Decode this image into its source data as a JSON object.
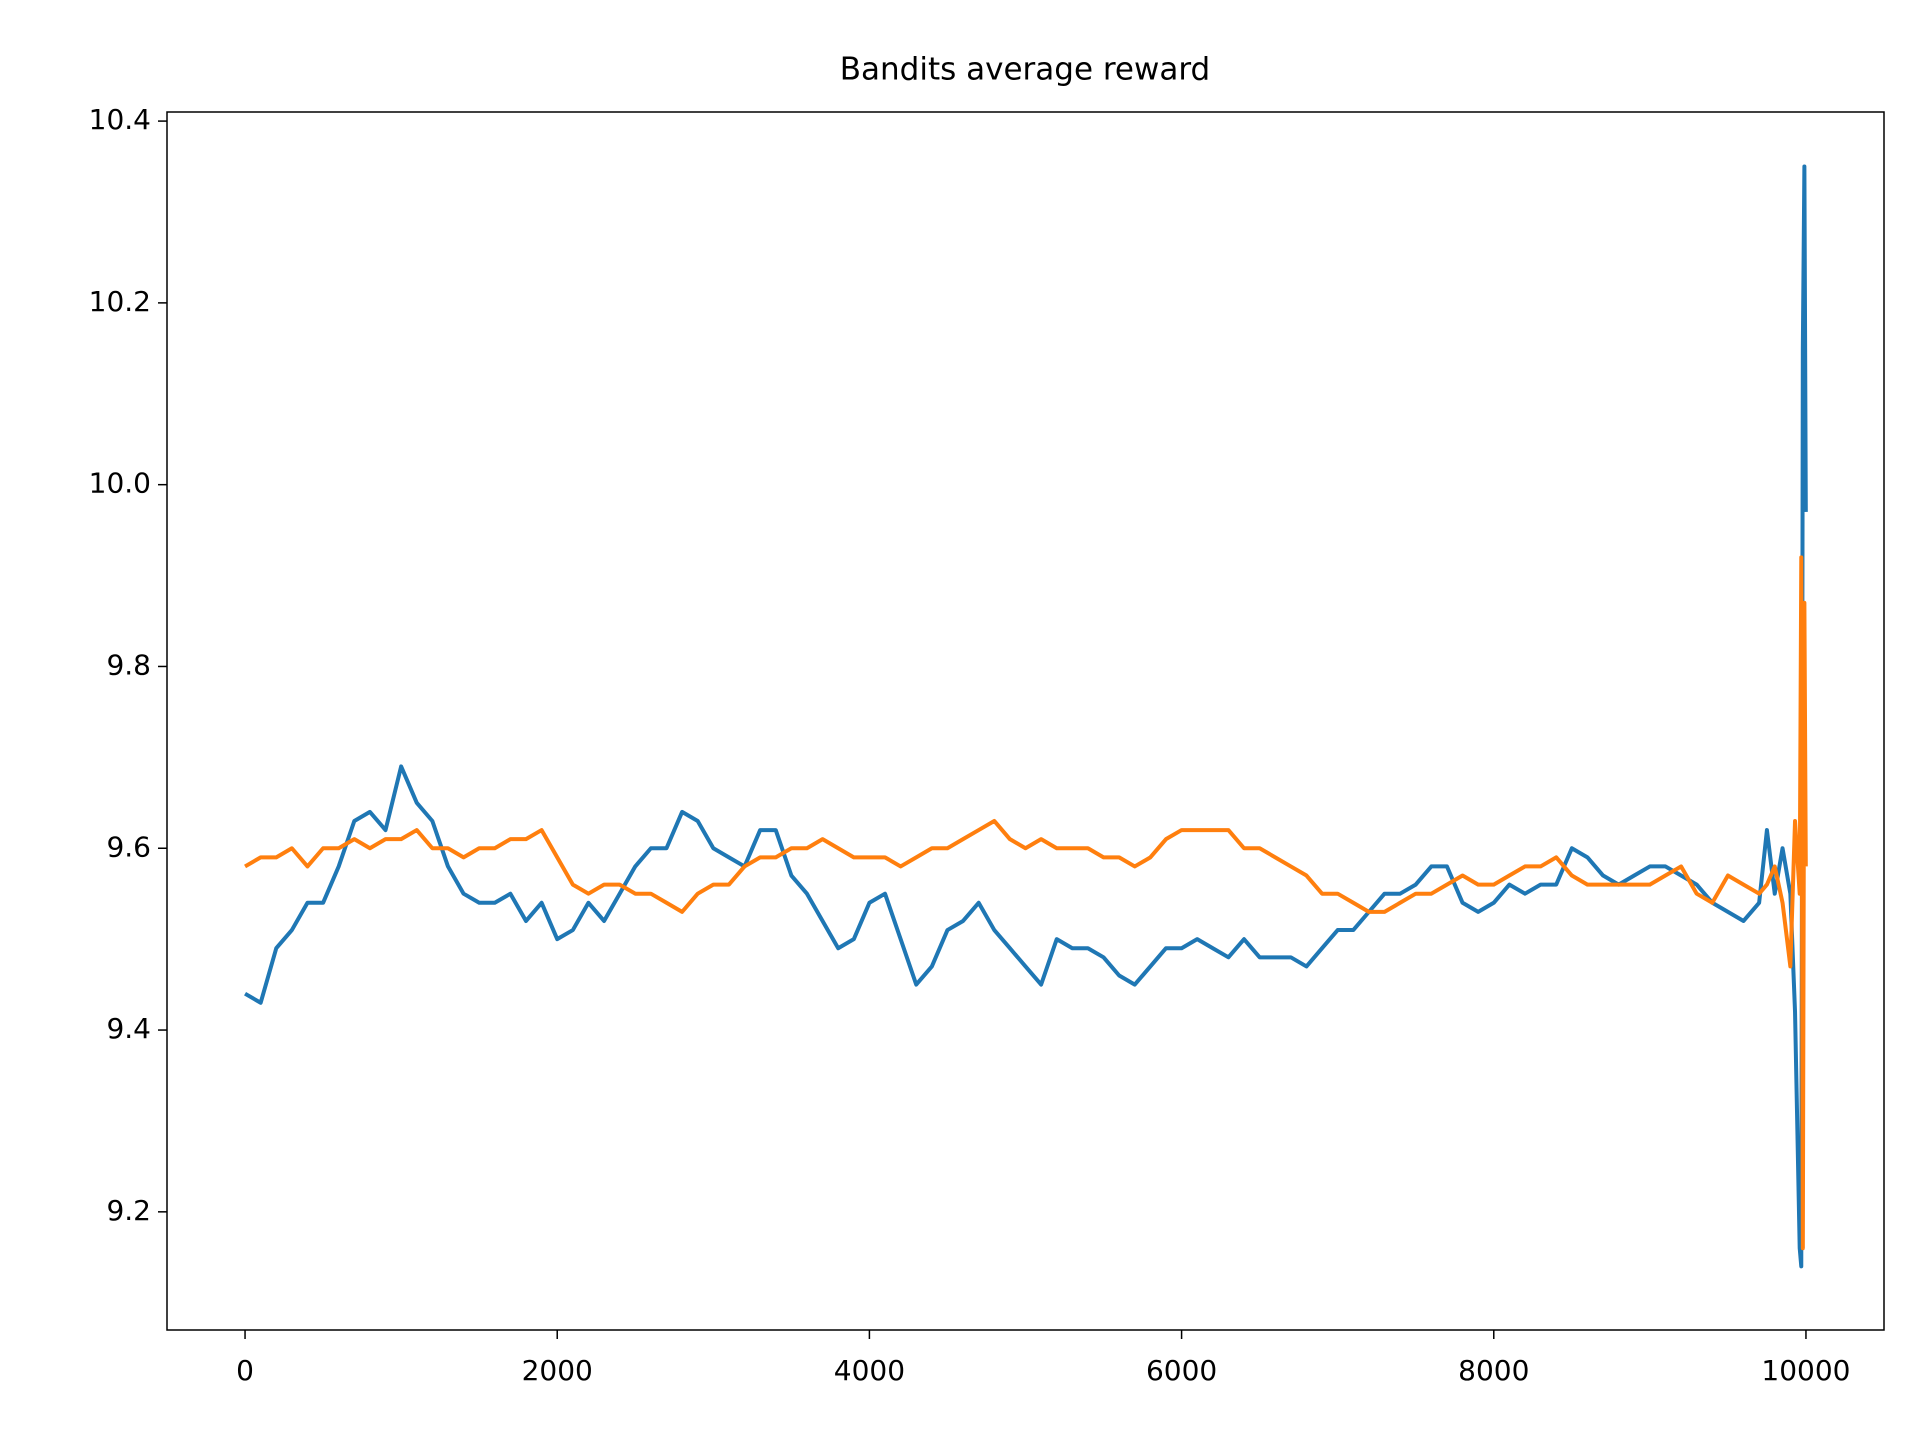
{
  "chart_data": {
    "type": "line",
    "title": "Bandits average reward",
    "x": [
      0,
      100,
      200,
      300,
      400,
      500,
      600,
      700,
      800,
      900,
      1000,
      1100,
      1200,
      1300,
      1400,
      1500,
      1600,
      1700,
      1800,
      1900,
      2000,
      2100,
      2200,
      2300,
      2400,
      2500,
      2600,
      2700,
      2800,
      2900,
      3000,
      3100,
      3200,
      3300,
      3400,
      3500,
      3600,
      3700,
      3800,
      3900,
      4000,
      4100,
      4200,
      4300,
      4400,
      4500,
      4600,
      4700,
      4800,
      4900,
      5000,
      5100,
      5200,
      5300,
      5400,
      5500,
      5600,
      5700,
      5800,
      5900,
      6000,
      6100,
      6200,
      6300,
      6400,
      6500,
      6600,
      6700,
      6800,
      6900,
      7000,
      7100,
      7200,
      7300,
      7400,
      7500,
      7600,
      7700,
      7800,
      7900,
      8000,
      8100,
      8200,
      8300,
      8400,
      8500,
      8600,
      8700,
      8800,
      8900,
      9000,
      9100,
      9200,
      9300,
      9400,
      9500,
      9600,
      9700,
      9750,
      9800,
      9850,
      9900,
      9930,
      9960,
      9970,
      9980,
      9990,
      9999
    ],
    "series": [
      {
        "color": "#1f77b4",
        "values": [
          9.44,
          9.43,
          9.49,
          9.51,
          9.54,
          9.54,
          9.58,
          9.63,
          9.64,
          9.62,
          9.69,
          9.65,
          9.63,
          9.58,
          9.55,
          9.54,
          9.54,
          9.55,
          9.52,
          9.54,
          9.5,
          9.51,
          9.54,
          9.52,
          9.55,
          9.58,
          9.6,
          9.6,
          9.64,
          9.63,
          9.6,
          9.59,
          9.58,
          9.62,
          9.62,
          9.57,
          9.55,
          9.52,
          9.49,
          9.5,
          9.54,
          9.55,
          9.5,
          9.45,
          9.47,
          9.51,
          9.52,
          9.54,
          9.51,
          9.49,
          9.47,
          9.45,
          9.5,
          9.49,
          9.49,
          9.48,
          9.46,
          9.45,
          9.47,
          9.49,
          9.49,
          9.5,
          9.49,
          9.48,
          9.5,
          9.48,
          9.48,
          9.48,
          9.47,
          9.49,
          9.51,
          9.51,
          9.53,
          9.55,
          9.55,
          9.56,
          9.58,
          9.58,
          9.54,
          9.53,
          9.54,
          9.56,
          9.55,
          9.56,
          9.56,
          9.6,
          9.59,
          9.57,
          9.56,
          9.57,
          9.58,
          9.58,
          9.57,
          9.56,
          9.54,
          9.53,
          9.52,
          9.54,
          9.62,
          9.55,
          9.6,
          9.55,
          9.42,
          9.16,
          9.14,
          10.15,
          10.35,
          9.97
        ]
      },
      {
        "color": "#ff7f0e",
        "values": [
          9.58,
          9.59,
          9.59,
          9.6,
          9.58,
          9.6,
          9.6,
          9.61,
          9.6,
          9.61,
          9.61,
          9.62,
          9.6,
          9.6,
          9.59,
          9.6,
          9.6,
          9.61,
          9.61,
          9.62,
          9.59,
          9.56,
          9.55,
          9.56,
          9.56,
          9.55,
          9.55,
          9.54,
          9.53,
          9.55,
          9.56,
          9.56,
          9.58,
          9.59,
          9.59,
          9.6,
          9.6,
          9.61,
          9.6,
          9.59,
          9.59,
          9.59,
          9.58,
          9.59,
          9.6,
          9.6,
          9.61,
          9.62,
          9.63,
          9.61,
          9.6,
          9.61,
          9.6,
          9.6,
          9.6,
          9.59,
          9.59,
          9.58,
          9.59,
          9.61,
          9.62,
          9.62,
          9.62,
          9.62,
          9.6,
          9.6,
          9.59,
          9.58,
          9.57,
          9.55,
          9.55,
          9.54,
          9.53,
          9.53,
          9.54,
          9.55,
          9.55,
          9.56,
          9.57,
          9.56,
          9.56,
          9.57,
          9.58,
          9.58,
          9.59,
          9.57,
          9.56,
          9.56,
          9.56,
          9.56,
          9.56,
          9.57,
          9.58,
          9.55,
          9.54,
          9.57,
          9.56,
          9.55,
          9.56,
          9.58,
          9.54,
          9.47,
          9.63,
          9.55,
          9.92,
          9.16,
          9.87,
          9.58
        ]
      }
    ],
    "xlim": [
      -500,
      10500
    ],
    "ylim": [
      9.07,
      10.41
    ],
    "xticks": [
      0,
      2000,
      4000,
      6000,
      8000,
      10000
    ],
    "yticks": [
      9.2,
      9.4,
      9.6,
      9.8,
      {
        "value": 10,
        "label": "10.0"
      },
      10.2,
      10.4
    ]
  }
}
